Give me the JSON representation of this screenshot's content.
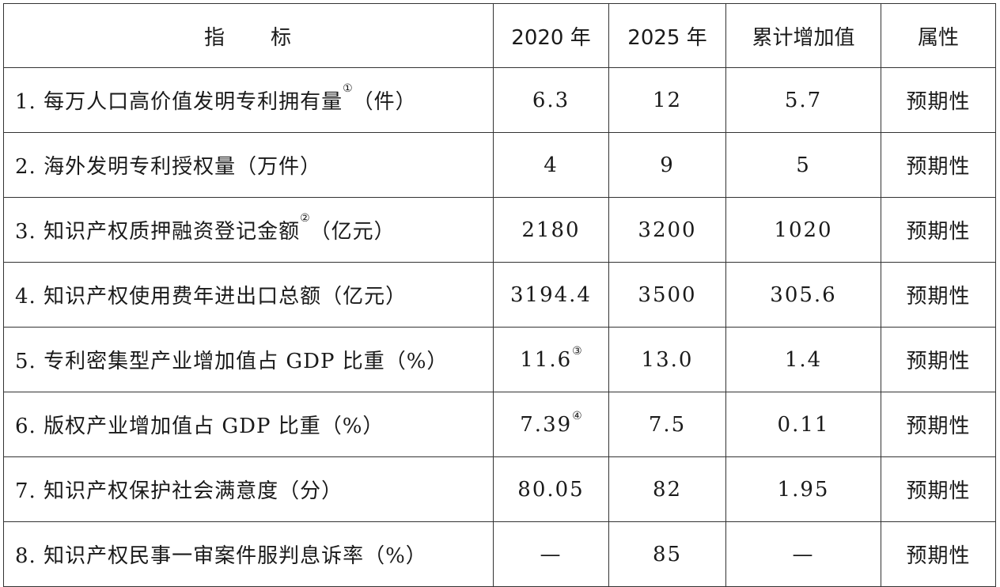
{
  "header": {
    "indicator": "指　　标",
    "y2020": "2020 年",
    "y2025": "2025 年",
    "increase": "累计增加值",
    "attribute": "属性"
  },
  "rows": [
    {
      "name": "1. 每万人口高价值发明专利拥有量",
      "name_note": "①",
      "name_unit": "（件）",
      "y2020": "6.3",
      "y2020_note": "",
      "y2025": "12",
      "increase": "5.7",
      "attribute": "预期性"
    },
    {
      "name": "2. 海外发明专利授权量（万件）",
      "name_note": "",
      "name_unit": "",
      "y2020": "4",
      "y2020_note": "",
      "y2025": "9",
      "increase": "5",
      "attribute": "预期性"
    },
    {
      "name": "3. 知识产权质押融资登记金额",
      "name_note": "②",
      "name_unit": "（亿元）",
      "y2020": "2180",
      "y2020_note": "",
      "y2025": "3200",
      "increase": "1020",
      "attribute": "预期性"
    },
    {
      "name": "4. 知识产权使用费年进出口总额（亿元）",
      "name_note": "",
      "name_unit": "",
      "y2020": "3194.4",
      "y2020_note": "",
      "y2025": "3500",
      "increase": "305.6",
      "attribute": "预期性"
    },
    {
      "name": "5. 专利密集型产业增加值占 GDP 比重（%）",
      "name_note": "",
      "name_unit": "",
      "y2020": "11.6",
      "y2020_note": "③",
      "y2025": "13.0",
      "increase": "1.4",
      "attribute": "预期性"
    },
    {
      "name": "6. 版权产业增加值占 GDP 比重（%）",
      "name_note": "",
      "name_unit": "",
      "y2020": "7.39",
      "y2020_note": "④",
      "y2025": "7.5",
      "increase": "0.11",
      "attribute": "预期性"
    },
    {
      "name": "7. 知识产权保护社会满意度（分）",
      "name_note": "",
      "name_unit": "",
      "y2020": "80.05",
      "y2020_note": "",
      "y2025": "82",
      "increase": "1.95",
      "attribute": "预期性"
    },
    {
      "name": "8. 知识产权民事一审案件服判息诉率（%）",
      "name_note": "",
      "name_unit": "",
      "y2020": "—",
      "y2020_note": "",
      "y2025": "85",
      "increase": "—",
      "attribute": "预期性"
    }
  ]
}
